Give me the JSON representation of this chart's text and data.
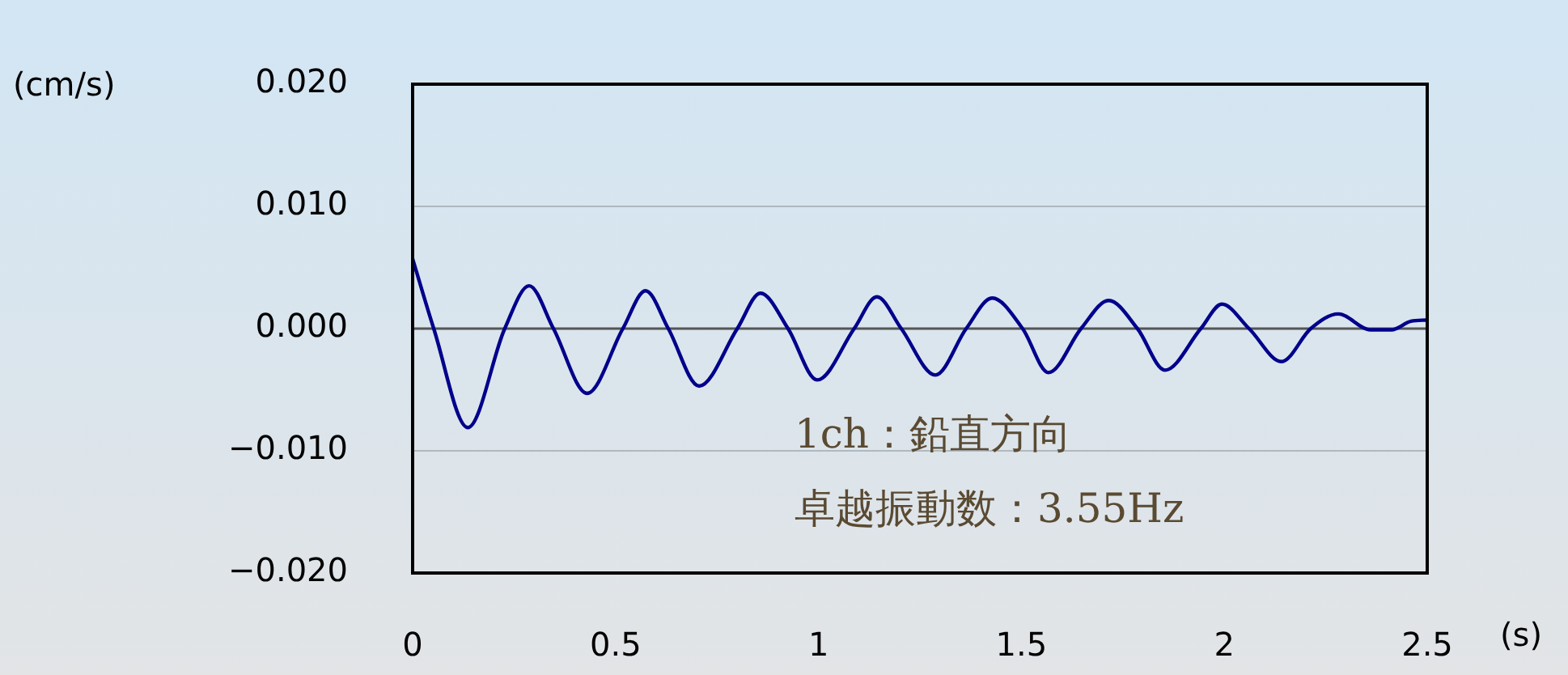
{
  "chart_data": {
    "type": "line",
    "xlabel": "(s)",
    "ylabel": "(cm/s)",
    "x": [
      0,
      0.052,
      0.136,
      0.227,
      0.287,
      0.347,
      0.43,
      0.518,
      0.574,
      0.63,
      0.706,
      0.8,
      0.857,
      0.925,
      0.997,
      1.088,
      1.144,
      1.204,
      1.288,
      1.364,
      1.428,
      1.503,
      1.567,
      1.647,
      1.715,
      1.786,
      1.854,
      1.942,
      1.994,
      2.061,
      2.141,
      2.213,
      2.281,
      2.36,
      2.412,
      2.46,
      2.5
    ],
    "series": [
      {
        "color": "#00008b",
        "values": [
          0.0057,
          0,
          -0.0081,
          0,
          0.0035,
          0,
          -0.0053,
          0,
          0.0031,
          0,
          -0.0047,
          0,
          0.0029,
          0,
          -0.0042,
          0,
          0.0026,
          0,
          -0.0038,
          0,
          0.0025,
          0,
          -0.0036,
          0,
          0.0023,
          0,
          -0.0034,
          0,
          0.002,
          0,
          -0.0027,
          0,
          0.0012,
          -0.0001,
          -0.0001,
          0.0006,
          0.0007
        ]
      }
    ],
    "xlim": [
      0,
      2.5
    ],
    "xticks": [
      0,
      0.5,
      1,
      1.5,
      2,
      2.5
    ],
    "ylim": [
      -0.02,
      0.02
    ],
    "yticks": [
      {
        "value": -0.02,
        "label": "−0.020"
      },
      {
        "value": -0.01,
        "label": "−0.010"
      },
      {
        "value": 0,
        "label": "0.000"
      },
      {
        "value": 0.01,
        "label": "0.010"
      },
      {
        "value": 0.02,
        "label": "0.020"
      }
    ],
    "grid": "y",
    "legend": false,
    "marker": "none",
    "line_style": "solid",
    "ref_lines": [
      {
        "axis": "y",
        "value": 0,
        "color": "#555555"
      }
    ],
    "annotations": [
      "1ch：鉛直方向",
      "卓越振動数：3.55Hz"
    ]
  }
}
